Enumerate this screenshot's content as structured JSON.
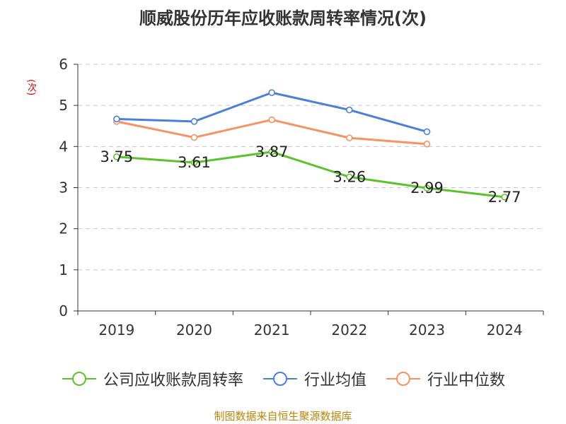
{
  "chart_data": {
    "type": "line",
    "title": "顺威股份历年应收账款周转率情况(次)",
    "ylabel": "(次)",
    "categories": [
      "2019",
      "2020",
      "2021",
      "2022",
      "2023",
      "2024"
    ],
    "ylim": [
      0,
      6
    ],
    "yticks": [
      "0",
      "1",
      "2",
      "3",
      "4",
      "5",
      "6"
    ],
    "grid": true,
    "legend_position": "bottom",
    "series": [
      {
        "name": "公司应收账款周转率",
        "color": "#5cc22b",
        "values": [
          3.75,
          3.61,
          3.87,
          3.26,
          2.99,
          2.77
        ],
        "labels": [
          "3.75",
          "3.61",
          "3.87",
          "3.26",
          "2.99",
          "2.77"
        ]
      },
      {
        "name": "行业均值",
        "color": "#4a7fda",
        "values": [
          4.67,
          4.61,
          5.31,
          4.89,
          4.36,
          null
        ]
      },
      {
        "name": "行业中位数",
        "color": "#f79360",
        "values": [
          4.61,
          4.22,
          4.65,
          4.21,
          4.06,
          null
        ]
      }
    ]
  },
  "source": "制图数据来自恒生聚源数据库"
}
